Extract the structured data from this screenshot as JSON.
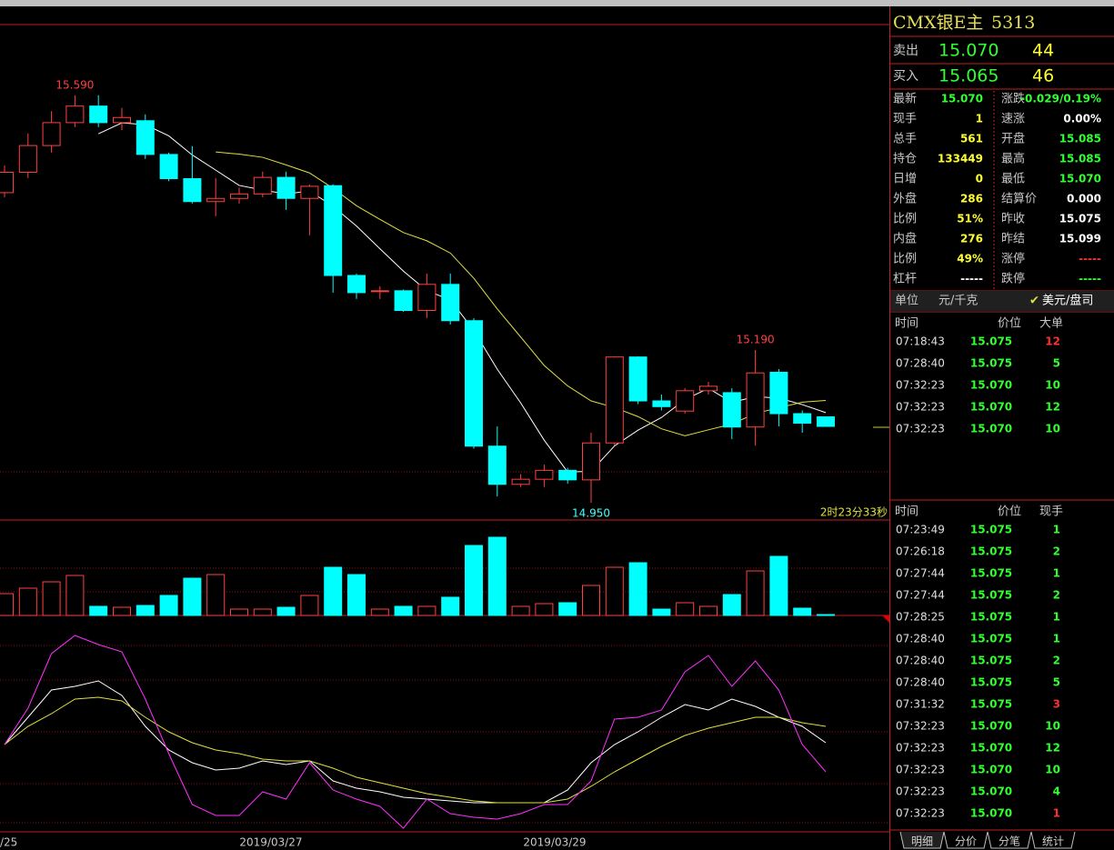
{
  "header": {
    "title": "CMX银E主",
    "code": "5313"
  },
  "quote": {
    "sell": {
      "label": "卖出",
      "price": "15.070",
      "volume": "44"
    },
    "buy": {
      "label": "买入",
      "price": "15.065",
      "volume": "46"
    },
    "rows": [
      [
        "最新",
        "15.070",
        "涨跌",
        "-0.029/0.19%"
      ],
      [
        "现手",
        "1",
        "速涨",
        "0.00%"
      ],
      [
        "总手",
        "561",
        "开盘",
        "15.085"
      ],
      [
        "持仓",
        "133449",
        "最高",
        "15.085"
      ],
      [
        "日增",
        "0",
        "最低",
        "15.070"
      ],
      [
        "外盘",
        "286",
        "结算价",
        "0.000"
      ],
      [
        "比例",
        "51%",
        "昨收",
        "15.075"
      ],
      [
        "内盘",
        "276",
        "昨结",
        "15.099"
      ],
      [
        "比例",
        "49%",
        "涨停",
        "-----"
      ],
      [
        "杠杆",
        "-----",
        "跌停",
        "-----"
      ]
    ],
    "unit": {
      "label": "单位",
      "value": "元/千克",
      "option": "美元/盘司"
    }
  },
  "big_orders": {
    "header": [
      "时间",
      "价位",
      "大单"
    ],
    "rows": [
      {
        "time": "07:18:43",
        "price": "15.075",
        "size": "12",
        "color": "#ff3030"
      },
      {
        "time": "07:28:40",
        "price": "15.075",
        "size": "5"
      },
      {
        "time": "07:32:23",
        "price": "15.070",
        "size": "10"
      },
      {
        "time": "07:32:23",
        "price": "15.070",
        "size": "12"
      },
      {
        "time": "07:32:23",
        "price": "15.070",
        "size": "10"
      }
    ]
  },
  "ticks": {
    "header": [
      "时间",
      "价位",
      "现手"
    ],
    "rows": [
      {
        "time": "07:23:49",
        "price": "15.075",
        "size": "1"
      },
      {
        "time": "07:26:18",
        "price": "15.075",
        "size": "2"
      },
      {
        "time": "07:27:44",
        "price": "15.075",
        "size": "1"
      },
      {
        "time": "07:27:44",
        "price": "15.075",
        "size": "2"
      },
      {
        "time": "07:28:25",
        "price": "15.075",
        "size": "1"
      },
      {
        "time": "07:28:40",
        "price": "15.075",
        "size": "1"
      },
      {
        "time": "07:28:40",
        "price": "15.075",
        "size": "2"
      },
      {
        "time": "07:28:40",
        "price": "15.075",
        "size": "5"
      },
      {
        "time": "07:31:32",
        "price": "15.075",
        "size": "3",
        "color": "#ff3030"
      },
      {
        "time": "07:32:23",
        "price": "15.070",
        "size": "10"
      },
      {
        "time": "07:32:23",
        "price": "15.070",
        "size": "12"
      },
      {
        "time": "07:32:23",
        "price": "15.070",
        "size": "10"
      },
      {
        "time": "07:32:23",
        "price": "15.070",
        "size": "4"
      },
      {
        "time": "07:32:23",
        "price": "15.070",
        "size": "1",
        "color": "#ff3030"
      }
    ]
  },
  "tabs": [
    "明细",
    "分价",
    "分笔",
    "统计"
  ],
  "chart_data": {
    "type": "candlestick",
    "countdown": "2时23分33秒",
    "x_labels": [
      "/25",
      "2019/03/27",
      "2019/03/29"
    ],
    "annotations": [
      "15.590",
      "14.950",
      "15.190"
    ],
    "up_color": "#ff4040",
    "down_color": "#00ffff",
    "ylim": [
      14.923,
      15.701
    ],
    "open": [
      15.437,
      15.469,
      15.511,
      15.547,
      15.573,
      15.547,
      15.55,
      15.497,
      15.459,
      15.423,
      15.428,
      15.435,
      15.461,
      15.428,
      15.448,
      15.307,
      15.283,
      15.283,
      15.252,
      15.293,
      15.236,
      15.039,
      14.979,
      14.987,
      15.001,
      14.986,
      15.044,
      15.179,
      15.11,
      15.094,
      15.126,
      15.123,
      15.069,
      15.155,
      15.09,
      15.085
    ],
    "high": [
      15.48,
      15.53,
      15.565,
      15.59,
      15.59,
      15.57,
      15.56,
      15.5,
      15.51,
      15.46,
      15.445,
      15.47,
      15.47,
      15.45,
      15.45,
      15.31,
      15.29,
      15.285,
      15.31,
      15.31,
      15.24,
      15.07,
      14.995,
      15.01,
      15.005,
      15.06,
      15.18,
      15.18,
      15.12,
      15.13,
      15.14,
      15.13,
      15.19,
      15.16,
      15.095,
      15.085
    ],
    "low": [
      15.43,
      15.46,
      15.5,
      15.54,
      15.54,
      15.535,
      15.49,
      15.455,
      15.42,
      15.4,
      15.42,
      15.43,
      15.41,
      15.37,
      15.28,
      15.27,
      15.27,
      15.25,
      15.24,
      15.23,
      15.035,
      14.96,
      14.975,
      14.975,
      14.98,
      14.95,
      15.04,
      15.105,
      15.095,
      15.09,
      15.12,
      15.05,
      15.04,
      15.07,
      15.06,
      15.07
    ],
    "close": [
      15.469,
      15.511,
      15.547,
      15.573,
      15.547,
      15.555,
      15.497,
      15.459,
      15.423,
      15.428,
      15.435,
      15.461,
      15.428,
      15.447,
      15.307,
      15.28,
      15.283,
      15.252,
      15.293,
      15.236,
      15.039,
      14.979,
      14.987,
      15.001,
      14.986,
      15.044,
      15.179,
      15.11,
      15.101,
      15.126,
      15.133,
      15.069,
      15.154,
      15.09,
      15.075,
      15.07
    ],
    "volume": [
      24,
      30,
      37,
      44,
      10,
      9,
      11,
      22,
      41,
      45,
      7,
      7,
      9,
      22,
      53,
      45,
      7,
      10,
      10,
      20,
      77,
      86,
      10,
      13,
      14,
      33,
      53,
      58,
      7,
      14,
      10,
      23,
      49,
      65,
      8,
      1
    ],
    "vlim": [
      0,
      105
    ],
    "k": [
      48,
      63,
      78,
      80,
      83,
      75,
      58,
      45,
      38,
      34,
      35,
      39,
      37,
      39,
      28,
      24,
      22,
      19,
      18,
      17,
      16,
      16,
      16,
      16,
      23,
      38,
      48,
      55,
      63,
      70,
      67,
      73,
      69,
      63,
      58,
      49
    ],
    "d": [
      48,
      58,
      65,
      73,
      74,
      72,
      63,
      55,
      49,
      45,
      43,
      40,
      39,
      39,
      35,
      30,
      27,
      24,
      21,
      19,
      17,
      16,
      16,
      16,
      18,
      25,
      33,
      40,
      47,
      53,
      57,
      60,
      63,
      63,
      60,
      58
    ],
    "j": [
      48,
      68,
      98,
      108,
      103,
      99,
      73,
      43,
      15,
      9,
      9,
      22,
      18,
      38,
      23,
      18,
      14,
      2,
      18,
      10,
      8,
      7,
      10,
      15,
      15,
      28,
      62,
      63,
      67,
      88,
      97,
      80,
      94,
      78,
      48,
      33
    ],
    "ilim": [
      0,
      115
    ]
  }
}
